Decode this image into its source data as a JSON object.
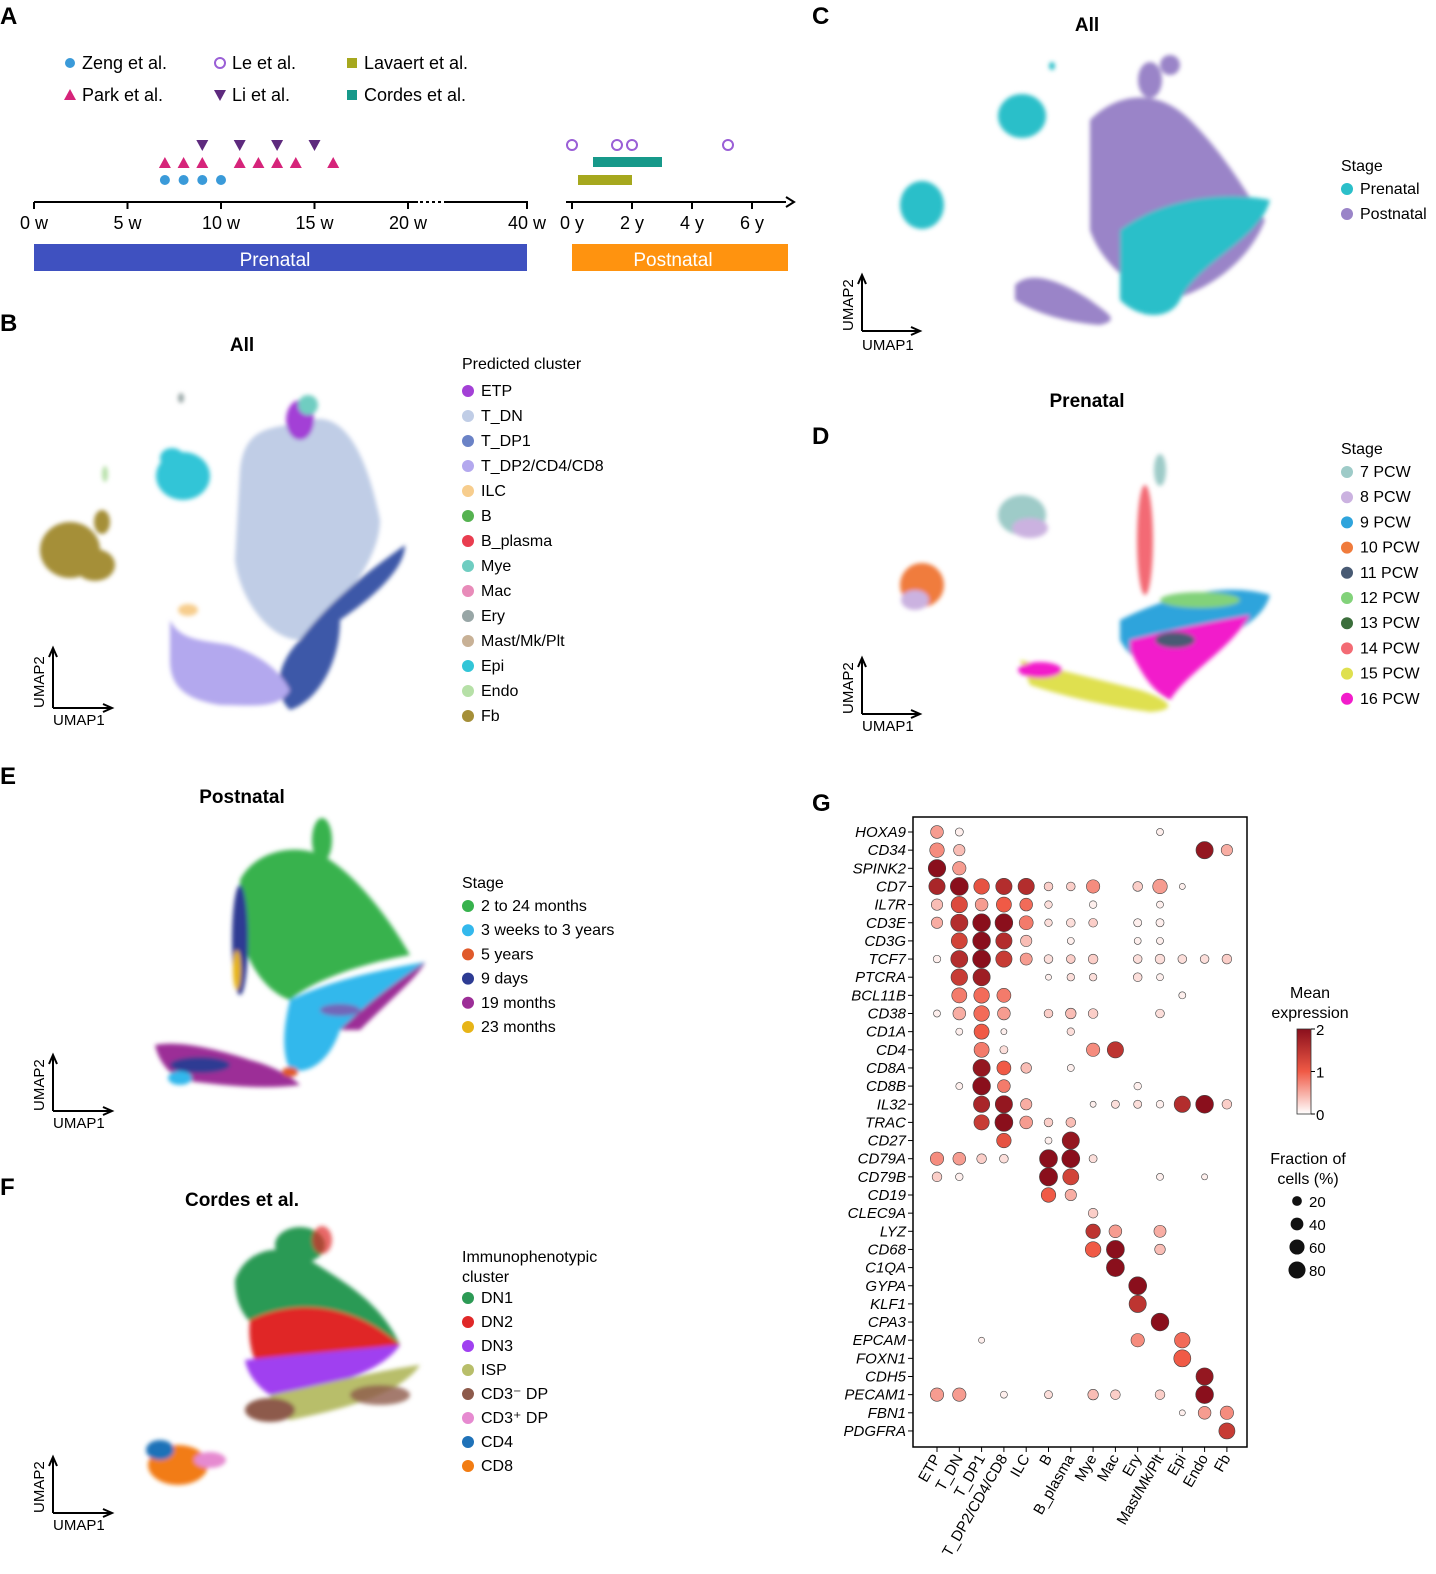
{
  "panels": {
    "A": {
      "letter": "A",
      "legend": [
        {
          "label": "Zeng et al.",
          "color": "#3a9ad9",
          "marker": "circle"
        },
        {
          "label": "Le et al.",
          "color": "#9a5fd6",
          "marker": "open-circle"
        },
        {
          "label": "Lavaert et al.",
          "color": "#a6a81e",
          "marker": "square"
        },
        {
          "label": "Park et al.",
          "color": "#d6247a",
          "marker": "triangle-up"
        },
        {
          "label": "Li et al.",
          "color": "#5e2a7e",
          "marker": "triangle-down"
        },
        {
          "label": "Cordes et al.",
          "color": "#17998a",
          "marker": "square"
        }
      ],
      "prenatal_ticks": [
        "0 w",
        "5 w",
        "10 w",
        "15 w",
        "20 w",
        "40 w"
      ],
      "postnatal_ticks": [
        "0 y",
        "2 y",
        "4 y",
        "6 y"
      ],
      "prenatal_label": "Prenatal",
      "postnatal_label": "Postnatal",
      "prenatal_color": "#3f51c0",
      "postnatal_color": "#ff930f",
      "zeng_weeks": [
        7,
        8,
        9,
        10
      ],
      "park_weeks": [
        7,
        8,
        9,
        11,
        12,
        13,
        14,
        16
      ],
      "li_weeks": [
        9,
        11,
        13,
        15
      ],
      "le_years": [
        0.0,
        1.5,
        2.0,
        5.2
      ],
      "lavaert_range_years": [
        0.2,
        2.0
      ],
      "cordes_range_years": [
        0.7,
        3.0
      ]
    },
    "B": {
      "letter": "B",
      "title": "All",
      "legend_title": "Predicted cluster",
      "clusters": [
        {
          "label": "ETP",
          "color": "#a340d6"
        },
        {
          "label": "T_DN",
          "color": "#c0cde6"
        },
        {
          "label": "T_DP1",
          "color": "#6a82c6"
        },
        {
          "label": "T_DP2/CD4/CD8",
          "color": "#b3a8ee"
        },
        {
          "label": "ILC",
          "color": "#f7cd8d"
        },
        {
          "label": "B",
          "color": "#55b250"
        },
        {
          "label": "B_plasma",
          "color": "#e93d4f"
        },
        {
          "label": "Mye",
          "color": "#6fcdc1"
        },
        {
          "label": "Mac",
          "color": "#e88bb9"
        },
        {
          "label": "Ery",
          "color": "#98a6a6"
        },
        {
          "label": "Mast/Mk/Plt",
          "color": "#c8b196"
        },
        {
          "label": "Epi",
          "color": "#32c5d7"
        },
        {
          "label": "Endo",
          "color": "#b6e0a7"
        },
        {
          "label": "Fb",
          "color": "#a58f38"
        }
      ],
      "xaxis": "UMAP1",
      "yaxis": "UMAP2"
    },
    "C": {
      "letter": "C",
      "title": "All",
      "legend_title": "Stage",
      "stages": [
        {
          "label": "Prenatal",
          "color": "#2bbfc9"
        },
        {
          "label": "Postnatal",
          "color": "#9a84c8"
        }
      ],
      "xaxis": "UMAP1",
      "yaxis": "UMAP2"
    },
    "D": {
      "letter": "D",
      "title": "Prenatal",
      "legend_title": "Stage",
      "stages": [
        {
          "label": "7 PCW",
          "color": "#9ecbc8"
        },
        {
          "label": "8 PCW",
          "color": "#cbb2e0"
        },
        {
          "label": "9 PCW",
          "color": "#2fa4dc"
        },
        {
          "label": "10 PCW",
          "color": "#f07b3c"
        },
        {
          "label": "11 PCW",
          "color": "#485a73"
        },
        {
          "label": "12 PCW",
          "color": "#82d27a"
        },
        {
          "label": "13 PCW",
          "color": "#3b6e3b"
        },
        {
          "label": "14 PCW",
          "color": "#f36b74"
        },
        {
          "label": "15 PCW",
          "color": "#dfe04f"
        },
        {
          "label": "16 PCW",
          "color": "#f21ccb"
        }
      ],
      "xaxis": "UMAP1",
      "yaxis": "UMAP2"
    },
    "E": {
      "letter": "E",
      "title": "Postnatal",
      "legend_title": "Stage",
      "stages": [
        {
          "label": "2 to 24 months",
          "color": "#37b24d"
        },
        {
          "label": "3 weeks to 3 years",
          "color": "#33b8ec"
        },
        {
          "label": "5 years",
          "color": "#e05a2b"
        },
        {
          "label": "9 days",
          "color": "#2d3b93"
        },
        {
          "label": "19 months",
          "color": "#9c2e97"
        },
        {
          "label": "23 months",
          "color": "#e7b417"
        }
      ],
      "xaxis": "UMAP1",
      "yaxis": "UMAP2"
    },
    "F": {
      "letter": "F",
      "title": "Cordes et al.",
      "legend_title_1": "Immunophenotypic",
      "legend_title_2": "cluster",
      "clusters": [
        {
          "label": "DN1",
          "color": "#2c9a55"
        },
        {
          "label": "DN2",
          "color": "#e02828"
        },
        {
          "label": "DN3",
          "color": "#a040f0"
        },
        {
          "label": "ISP",
          "color": "#b8be6a"
        },
        {
          "label": "CD3⁻ DP",
          "color": "#8d5a4b"
        },
        {
          "label": "CD3⁺ DP",
          "color": "#e68ad0"
        },
        {
          "label": "CD4",
          "color": "#1f72b8"
        },
        {
          "label": "CD8",
          "color": "#f27c12"
        }
      ],
      "xaxis": "UMAP1",
      "yaxis": "UMAP2"
    },
    "G": {
      "letter": "G",
      "legend_color_title_1": "Mean",
      "legend_color_title_2": "expression",
      "color_ticks": [
        "2",
        "1",
        "0"
      ],
      "legend_size_title_1": "Fraction of",
      "legend_size_title_2": "cells (%)",
      "size_ticks": [
        "20",
        "40",
        "60",
        "80"
      ]
    }
  },
  "chart_data": {
    "type": "dotplot",
    "genes": [
      "HOXA9",
      "CD34",
      "SPINK2",
      "CD7",
      "IL7R",
      "CD3E",
      "CD3G",
      "TCF7",
      "PTCRA",
      "BCL11B",
      "CD38",
      "CD1A",
      "CD4",
      "CD8A",
      "CD8B",
      "IL32",
      "TRAC",
      "CD27",
      "CD79A",
      "CD79B",
      "CD19",
      "CLEC9A",
      "LYZ",
      "CD68",
      "C1QA",
      "GYPA",
      "KLF1",
      "CPA3",
      "EPCAM",
      "FOXN1",
      "CDH5",
      "PECAM1",
      "FBN1",
      "PDGFRA"
    ],
    "clusters": [
      "ETP",
      "T_DN",
      "T_DP1",
      "T_DP2/CD4/CD8",
      "ILC",
      "B",
      "B_plasma",
      "Mye",
      "Mac",
      "Ery",
      "Mast/Mk/Plt",
      "Epi",
      "Endo",
      "Fb"
    ],
    "color_scale": {
      "label": "Mean expression",
      "min": 0,
      "max": 2
    },
    "size_scale": {
      "label": "Fraction of cells (%)",
      "values": [
        20,
        40,
        60,
        80
      ]
    },
    "dots": [
      [
        "HOXA9",
        "ETP",
        40,
        0.6
      ],
      [
        "HOXA9",
        "T_DN",
        12,
        0.1
      ],
      [
        "HOXA9",
        "Mast/Mk/Plt",
        8,
        0.1
      ],
      [
        "CD34",
        "ETP",
        55,
        0.7
      ],
      [
        "CD34",
        "T_DN",
        30,
        0.4
      ],
      [
        "CD34",
        "Endo",
        82,
        1.9
      ],
      [
        "CD34",
        "Fb",
        30,
        0.5
      ],
      [
        "SPINK2",
        "ETP",
        85,
        2.0
      ],
      [
        "SPINK2",
        "T_DN",
        45,
        0.6
      ],
      [
        "CD7",
        "ETP",
        72,
        1.7
      ],
      [
        "CD7",
        "T_DN",
        90,
        2.0
      ],
      [
        "CD7",
        "T_DP1",
        65,
        1.1
      ],
      [
        "CD7",
        "T_DP2/CD4/CD8",
        72,
        1.6
      ],
      [
        "CD7",
        "ILC",
        72,
        1.6
      ],
      [
        "CD7",
        "B",
        15,
        0.3
      ],
      [
        "CD7",
        "B_plasma",
        15,
        0.3
      ],
      [
        "CD7",
        "Mye",
        45,
        0.7
      ],
      [
        "CD7",
        "Ery",
        20,
        0.3
      ],
      [
        "CD7",
        "Mast/Mk/Plt",
        55,
        0.6
      ],
      [
        "CD7",
        "Epi",
        5,
        0.1
      ],
      [
        "IL7R",
        "ETP",
        30,
        0.4
      ],
      [
        "IL7R",
        "T_DN",
        72,
        1.2
      ],
      [
        "IL7R",
        "T_DP1",
        40,
        0.6
      ],
      [
        "IL7R",
        "T_DP2/CD4/CD8",
        60,
        1.0
      ],
      [
        "IL7R",
        "ILC",
        40,
        0.9
      ],
      [
        "IL7R",
        "B",
        10,
        0.2
      ],
      [
        "IL7R",
        "Mye",
        10,
        0.1
      ],
      [
        "IL7R",
        "Mast/Mk/Plt",
        8,
        0.1
      ],
      [
        "CD3E",
        "ETP",
        30,
        0.5
      ],
      [
        "CD3E",
        "T_DN",
        82,
        1.6
      ],
      [
        "CD3E",
        "T_DP1",
        88,
        2.0
      ],
      [
        "CD3E",
        "T_DP2/CD4/CD8",
        88,
        2.0
      ],
      [
        "CD3E",
        "ILC",
        50,
        0.8
      ],
      [
        "CD3E",
        "B",
        10,
        0.2
      ],
      [
        "CD3E",
        "B_plasma",
        15,
        0.2
      ],
      [
        "CD3E",
        "Mye",
        15,
        0.3
      ],
      [
        "CD3E",
        "Ery",
        12,
        0.1
      ],
      [
        "CD3E",
        "Mast/Mk/Plt",
        12,
        0.1
      ],
      [
        "CD3G",
        "T_DN",
        70,
        1.3
      ],
      [
        "CD3G",
        "T_DP1",
        88,
        2.0
      ],
      [
        "CD3G",
        "T_DP2/CD4/CD8",
        72,
        1.6
      ],
      [
        "CD3G",
        "ILC",
        30,
        0.4
      ],
      [
        "CD3G",
        "B_plasma",
        8,
        0.1
      ],
      [
        "CD3G",
        "Ery",
        8,
        0.1
      ],
      [
        "CD3G",
        "Mast/Mk/Plt",
        8,
        0.1
      ],
      [
        "TCF7",
        "ETP",
        10,
        0.1
      ],
      [
        "TCF7",
        "T_DN",
        80,
        1.6
      ],
      [
        "TCF7",
        "T_DP1",
        90,
        2.0
      ],
      [
        "TCF7",
        "T_DP2/CD4/CD8",
        72,
        1.4
      ],
      [
        "TCF7",
        "ILC",
        35,
        0.6
      ],
      [
        "TCF7",
        "B",
        15,
        0.2
      ],
      [
        "TCF7",
        "B_plasma",
        15,
        0.3
      ],
      [
        "TCF7",
        "Mye",
        20,
        0.3
      ],
      [
        "TCF7",
        "Ery",
        15,
        0.2
      ],
      [
        "TCF7",
        "Mast/Mk/Plt",
        20,
        0.2
      ],
      [
        "TCF7",
        "Epi",
        15,
        0.2
      ],
      [
        "TCF7",
        "Endo",
        15,
        0.2
      ],
      [
        "TCF7",
        "Fb",
        20,
        0.3
      ],
      [
        "PTCRA",
        "T_DN",
        75,
        1.4
      ],
      [
        "PTCRA",
        "T_DP1",
        82,
        1.8
      ],
      [
        "PTCRA",
        "B",
        5,
        0.1
      ],
      [
        "PTCRA",
        "B_plasma",
        10,
        0.2
      ],
      [
        "PTCRA",
        "Mye",
        10,
        0.2
      ],
      [
        "PTCRA",
        "Ery",
        15,
        0.2
      ],
      [
        "PTCRA",
        "Mast/Mk/Plt",
        8,
        0.1
      ],
      [
        "BCL11B",
        "T_DN",
        60,
        0.8
      ],
      [
        "BCL11B",
        "T_DP1",
        65,
        0.9
      ],
      [
        "BCL11B",
        "T_DP2/CD4/CD8",
        50,
        0.8
      ],
      [
        "BCL11B",
        "Epi",
        8,
        0.1
      ],
      [
        "CD38",
        "ETP",
        8,
        0.1
      ],
      [
        "CD38",
        "T_DN",
        40,
        0.5
      ],
      [
        "CD38",
        "T_DP1",
        65,
        0.9
      ],
      [
        "CD38",
        "T_DP2/CD4/CD8",
        40,
        0.6
      ],
      [
        "CD38",
        "B",
        15,
        0.3
      ],
      [
        "CD38",
        "B_plasma",
        25,
        0.4
      ],
      [
        "CD38",
        "Mye",
        20,
        0.3
      ],
      [
        "CD38",
        "Mast/Mk/Plt",
        15,
        0.2
      ],
      [
        "CD1A",
        "T_DN",
        8,
        0.1
      ],
      [
        "CD1A",
        "T_DP1",
        60,
        1.0
      ],
      [
        "CD1A",
        "T_DP2/CD4/CD8",
        5,
        0.1
      ],
      [
        "CD1A",
        "B_plasma",
        10,
        0.2
      ],
      [
        "CD4",
        "T_DP1",
        60,
        0.8
      ],
      [
        "CD4",
        "T_DP2/CD4/CD8",
        12,
        0.2
      ],
      [
        "CD4",
        "Mye",
        45,
        0.7
      ],
      [
        "CD4",
        "Mac",
        72,
        1.5
      ],
      [
        "CD8A",
        "T_DP1",
        82,
        1.9
      ],
      [
        "CD8A",
        "T_DP2/CD4/CD8",
        50,
        1.0
      ],
      [
        "CD8A",
        "ILC",
        25,
        0.4
      ],
      [
        "CD8A",
        "B_plasma",
        8,
        0.1
      ],
      [
        "CD8B",
        "T_DN",
        8,
        0.1
      ],
      [
        "CD8B",
        "T_DP1",
        88,
        2.0
      ],
      [
        "CD8B",
        "T_DP2/CD4/CD8",
        40,
        0.8
      ],
      [
        "CD8B",
        "Ery",
        10,
        0.1
      ],
      [
        "IL32",
        "T_DP1",
        72,
        1.7
      ],
      [
        "IL32",
        "T_DP2/CD4/CD8",
        82,
        1.9
      ],
      [
        "IL32",
        "ILC",
        30,
        0.5
      ],
      [
        "IL32",
        "Mye",
        5,
        0.1
      ],
      [
        "IL32",
        "Mac",
        12,
        0.2
      ],
      [
        "IL32",
        "Ery",
        12,
        0.2
      ],
      [
        "IL32",
        "Mast/Mk/Plt",
        10,
        0.1
      ],
      [
        "IL32",
        "Epi",
        72,
        1.6
      ],
      [
        "IL32",
        "Endo",
        88,
        2.0
      ],
      [
        "IL32",
        "Fb",
        20,
        0.3
      ],
      [
        "TRAC",
        "T_DP1",
        62,
        1.4
      ],
      [
        "TRAC",
        "T_DP2/CD4/CD8",
        90,
        2.0
      ],
      [
        "TRAC",
        "ILC",
        40,
        0.6
      ],
      [
        "TRAC",
        "B",
        15,
        0.3
      ],
      [
        "TRAC",
        "B_plasma",
        20,
        0.4
      ],
      [
        "CD27",
        "T_DP2/CD4/CD8",
        55,
        1.1
      ],
      [
        "CD27",
        "B",
        8,
        0.1
      ],
      [
        "CD27",
        "B_plasma",
        82,
        1.9
      ],
      [
        "CD79A",
        "ETP",
        45,
        0.7
      ],
      [
        "CD79A",
        "T_DN",
        40,
        0.6
      ],
      [
        "CD79A",
        "T_DP1",
        20,
        0.3
      ],
      [
        "CD79A",
        "T_DP2/CD4/CD8",
        15,
        0.2
      ],
      [
        "CD79A",
        "B",
        90,
        2.0
      ],
      [
        "CD79A",
        "B_plasma",
        90,
        2.0
      ],
      [
        "CD79A",
        "Mye",
        12,
        0.2
      ],
      [
        "CD79B",
        "ETP",
        20,
        0.3
      ],
      [
        "CD79B",
        "T_DN",
        10,
        0.1
      ],
      [
        "CD79B",
        "B",
        92,
        2.0
      ],
      [
        "CD79B",
        "B_plasma",
        70,
        1.3
      ],
      [
        "CD79B",
        "Mast/Mk/Plt",
        8,
        0.1
      ],
      [
        "CD79B",
        "Endo",
        5,
        0.1
      ],
      [
        "CD19",
        "B",
        55,
        1.0
      ],
      [
        "CD19",
        "B_plasma",
        30,
        0.5
      ],
      [
        "CLEC9A",
        "Mye",
        20,
        0.3
      ],
      [
        "LYZ",
        "Mye",
        55,
        1.5
      ],
      [
        "LYZ",
        "Mac",
        40,
        0.6
      ],
      [
        "LYZ",
        "Mast/Mk/Plt",
        35,
        0.5
      ],
      [
        "CD68",
        "Mye",
        65,
        1.0
      ],
      [
        "CD68",
        "Mac",
        90,
        2.0
      ],
      [
        "CD68",
        "Mast/Mk/Plt",
        25,
        0.4
      ],
      [
        "C1QA",
        "Mac",
        90,
        2.0
      ],
      [
        "GYPA",
        "Ery",
        90,
        2.0
      ],
      [
        "KLF1",
        "Ery",
        82,
        1.5
      ],
      [
        "CPA3",
        "Mast/Mk/Plt",
        88,
        2.0
      ],
      [
        "EPCAM",
        "T_DP1",
        5,
        0.1
      ],
      [
        "EPCAM",
        "Ery",
        45,
        0.7
      ],
      [
        "EPCAM",
        "Epi",
        65,
        0.9
      ],
      [
        "FOXN1",
        "Epi",
        80,
        1.0
      ],
      [
        "CDH5",
        "Endo",
        82,
        1.9
      ],
      [
        "PECAM1",
        "ETP",
        45,
        0.6
      ],
      [
        "PECAM1",
        "T_DN",
        45,
        0.6
      ],
      [
        "PECAM1",
        "T_DP2/CD4/CD8",
        8,
        0.1
      ],
      [
        "PECAM1",
        "B",
        12,
        0.2
      ],
      [
        "PECAM1",
        "Mye",
        25,
        0.4
      ],
      [
        "PECAM1",
        "Mac",
        20,
        0.3
      ],
      [
        "PECAM1",
        "Mast/Mk/Plt",
        20,
        0.3
      ],
      [
        "PECAM1",
        "Endo",
        88,
        2.0
      ],
      [
        "FBN1",
        "Epi",
        5,
        0.1
      ],
      [
        "FBN1",
        "Endo",
        40,
        0.6
      ],
      [
        "FBN1",
        "Fb",
        45,
        0.7
      ],
      [
        "PDGFRA",
        "Fb",
        70,
        1.4
      ]
    ]
  }
}
